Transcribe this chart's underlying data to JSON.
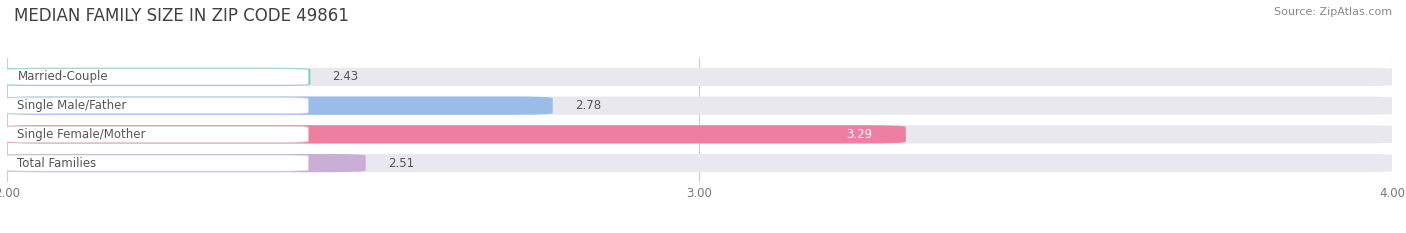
{
  "title": "MEDIAN FAMILY SIZE IN ZIP CODE 49861",
  "source": "Source: ZipAtlas.com",
  "categories": [
    "Married-Couple",
    "Single Male/Father",
    "Single Female/Mother",
    "Total Families"
  ],
  "values": [
    2.43,
    2.78,
    3.29,
    2.51
  ],
  "bar_colors": [
    "#6dcfcc",
    "#99bce8",
    "#ee7fa0",
    "#c9aed6"
  ],
  "bar_bg_color": "#e8e8ee",
  "xlim_left": 2.0,
  "xlim_right": 4.0,
  "xticks": [
    2.0,
    3.0,
    4.0
  ],
  "xtick_labels": [
    "2.00",
    "3.00",
    "4.00"
  ],
  "label_fontsize": 8.5,
  "value_fontsize": 8.5,
  "title_fontsize": 12,
  "source_fontsize": 8,
  "bar_height": 0.62,
  "background_color": "#ffffff",
  "label_box_color": "#ffffff",
  "label_text_color": "#555555",
  "value_text_color_normal": "#555555",
  "value_text_color_white": "#ffffff",
  "white_value_index": 2,
  "grid_color": "#cccccc",
  "title_color": "#404040"
}
